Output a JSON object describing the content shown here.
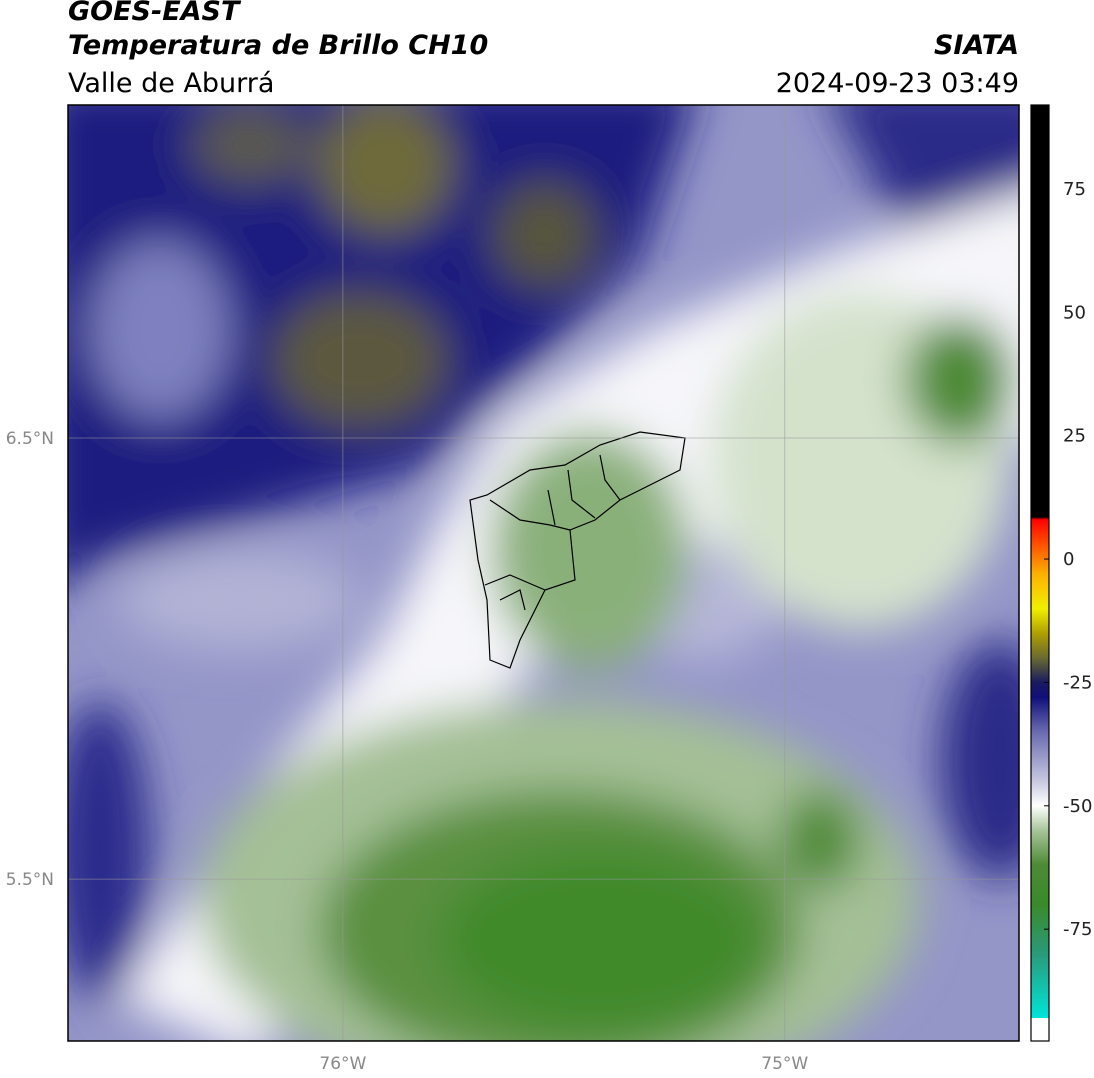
{
  "header": {
    "title": "GOES-EAST",
    "subtitle": "Temperatura de Brillo CH10",
    "region": "Valle de Aburrá",
    "source": "SIATA",
    "timestamp": "2024-09-23 03:49"
  },
  "map": {
    "xlim": [
      -76.622,
      -74.47
    ],
    "ylim": [
      5.133,
      7.255
    ],
    "xticks": [
      {
        "value": -76,
        "label": "76°W"
      },
      {
        "value": -75,
        "label": "75°W"
      }
    ],
    "yticks": [
      {
        "value": 6.5,
        "label": "6.5°N"
      },
      {
        "value": 5.5,
        "label": "5.5°N"
      }
    ],
    "grid": true
  },
  "colorbar": {
    "lim": [
      -93,
      92
    ],
    "ticks": [
      75,
      50,
      25,
      0,
      -25,
      -50,
      -75
    ],
    "stops": [
      {
        "value": -93,
        "color": "#00e5d8"
      },
      {
        "value": -80,
        "color": "#2a9a7a"
      },
      {
        "value": -70,
        "color": "#3a8a2a"
      },
      {
        "value": -62,
        "color": "#4e8a36"
      },
      {
        "value": -55,
        "color": "#a8c49a"
      },
      {
        "value": -50,
        "color": "#ffffff"
      },
      {
        "value": -45,
        "color": "#c8c8e0"
      },
      {
        "value": -35,
        "color": "#6a6ab0"
      },
      {
        "value": -28,
        "color": "#10107a"
      },
      {
        "value": -25,
        "color": "#1a1a60"
      },
      {
        "value": -20,
        "color": "#6a6a30"
      },
      {
        "value": -15,
        "color": "#b0a000"
      },
      {
        "value": -10,
        "color": "#f0f000"
      },
      {
        "value": -3,
        "color": "#ffb000"
      },
      {
        "value": 5,
        "color": "#ff3000"
      },
      {
        "value": 8,
        "color": "#ff0000"
      },
      {
        "value": 8.5,
        "color": "#000000"
      },
      {
        "value": 92,
        "color": "#000000"
      }
    ]
  }
}
